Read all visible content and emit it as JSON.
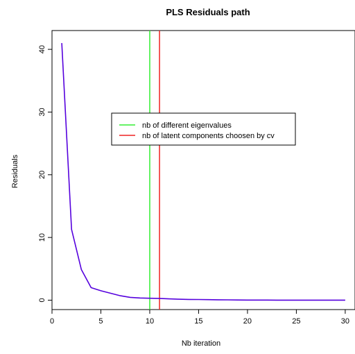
{
  "chart_data": {
    "type": "line",
    "title": "PLS Residuals path",
    "xlabel": "Nb iteration",
    "ylabel": "Residuals",
    "xlim": [
      0,
      31
    ],
    "ylim": [
      -1.5,
      43
    ],
    "xticks": [
      0,
      5,
      10,
      15,
      20,
      25,
      30
    ],
    "yticks": [
      0,
      10,
      20,
      30,
      40
    ],
    "grid": false,
    "series": [
      {
        "color": "#5500dd",
        "x": [
          1,
          2,
          3,
          4,
          5,
          6,
          7,
          8,
          9,
          10,
          11,
          12,
          13,
          14,
          15,
          16,
          17,
          18,
          19,
          20,
          21,
          22,
          23,
          24,
          25,
          26,
          27,
          28,
          29,
          30
        ],
        "y": [
          41.0,
          11.3,
          4.9,
          2.0,
          1.5,
          1.1,
          0.7,
          0.45,
          0.35,
          0.3,
          0.28,
          0.2,
          0.15,
          0.12,
          0.1,
          0.08,
          0.06,
          0.05,
          0.03,
          0.02,
          0.02,
          0.02,
          0.01,
          0.01,
          0.01,
          0.01,
          0.0,
          0.0,
          0.0,
          0.0
        ]
      }
    ],
    "vlines": [
      {
        "x": 10,
        "color": "#33ee33",
        "label": "nb of different eigenvalues"
      },
      {
        "x": 11,
        "color": "#ee2222",
        "label": "nb of latent components choosen by cv"
      }
    ],
    "legend_placement": "center"
  }
}
